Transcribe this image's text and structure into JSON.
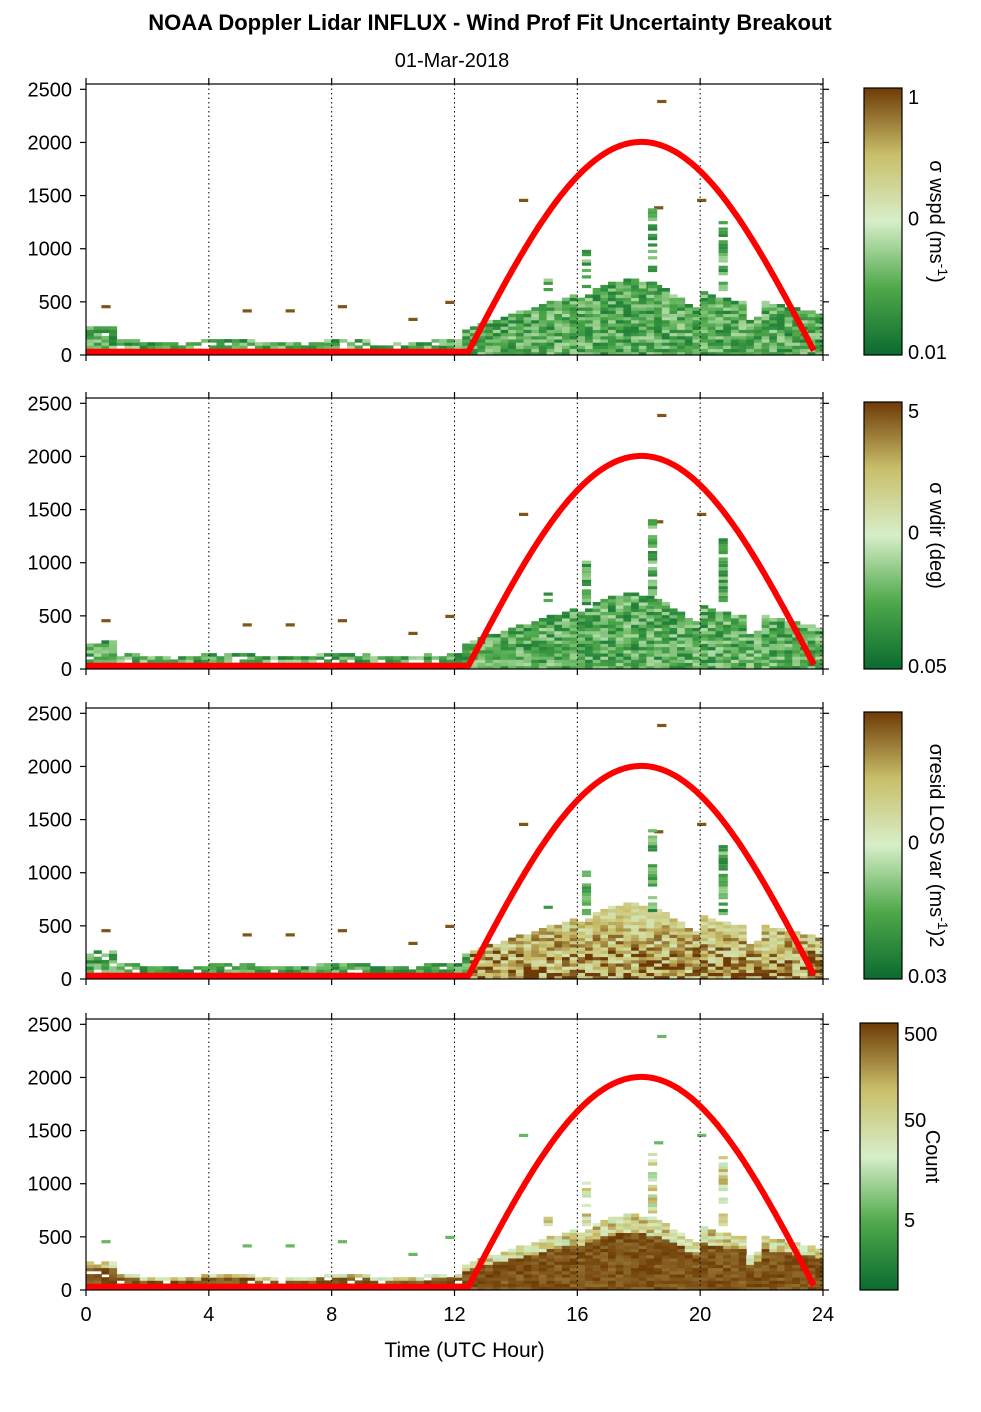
{
  "title": "NOAA Doppler Lidar INFLUX - Wind Prof Fit Uncertainty Breakout",
  "subtitle": "01-Mar-2018",
  "chart_data": [
    {
      "type": "heatmap",
      "xlabel": "",
      "ylabel": "",
      "xlim": [
        0,
        24
      ],
      "ylim": [
        0,
        2550
      ],
      "xticks": [
        0,
        4,
        8,
        12,
        16,
        20,
        24
      ],
      "yticks": [
        0,
        500,
        1000,
        1500,
        2000,
        2500
      ],
      "colorbar": {
        "label": "σ wspd (ms-1)",
        "label_main": "σ wspd (ms",
        "label_sup": "-1",
        "label_end": ")",
        "scale": "log",
        "ticks": [
          "1",
          "0",
          "0.01"
        ],
        "colors": [
          "#0a6b30",
          "#4ea84a",
          "#d7eec9",
          "#c9bf6a",
          "#6e3b06"
        ]
      },
      "series": [
        {
          "name": "",
          "type": "line",
          "color": "#ff0000"
        }
      ]
    },
    {
      "type": "heatmap",
      "xlabel": "",
      "ylabel": "",
      "xlim": [
        0,
        24
      ],
      "ylim": [
        0,
        2550
      ],
      "xticks": [
        0,
        4,
        8,
        12,
        16,
        20,
        24
      ],
      "yticks": [
        0,
        500,
        1000,
        1500,
        2000,
        2500
      ],
      "colorbar": {
        "label": "σ wdir (deg)",
        "label_main": "σ wdir (deg)",
        "label_sup": "",
        "label_end": "",
        "scale": "log",
        "ticks": [
          "5",
          "0",
          "0.05"
        ],
        "colors": [
          "#0a6b30",
          "#4ea84a",
          "#d7eec9",
          "#c9bf6a",
          "#6e3b06"
        ]
      },
      "series": [
        {
          "name": "",
          "type": "line",
          "color": "#ff0000"
        }
      ]
    },
    {
      "type": "heatmap",
      "xlabel": "",
      "ylabel": "",
      "xlim": [
        0,
        24
      ],
      "ylim": [
        0,
        2550
      ],
      "xticks": [
        0,
        4,
        8,
        12,
        16,
        20,
        24
      ],
      "yticks": [
        0,
        500,
        1000,
        1500,
        2000,
        2500
      ],
      "colorbar": {
        "label": "σresid LOS var (ms-1)2",
        "label_main": "σresid LOS var (ms",
        "label_sup": "-1",
        "label_end": ")2",
        "scale": "log",
        "ticks": [
          "",
          "0",
          "0.03"
        ],
        "colors": [
          "#0a6b30",
          "#4ea84a",
          "#d7eec9",
          "#c9bf6a",
          "#6e3b06"
        ]
      },
      "series": [
        {
          "name": "",
          "type": "line",
          "color": "#ff0000"
        }
      ]
    },
    {
      "type": "heatmap",
      "xlabel": "Time (UTC Hour)",
      "ylabel": "",
      "xlim": [
        0,
        24
      ],
      "ylim": [
        0,
        2550
      ],
      "xticks": [
        0,
        4,
        8,
        12,
        16,
        20,
        24
      ],
      "yticks": [
        0,
        500,
        1000,
        1500,
        2000,
        2500
      ],
      "colorbar": {
        "label": "Count",
        "label_main": "Count",
        "label_sup": "",
        "label_end": "",
        "scale": "log",
        "ticks": [
          "500",
          "50",
          "5"
        ],
        "colors": [
          "#0a6b30",
          "#4ea84a",
          "#d7eec9",
          "#c9bf6a",
          "#6e3b06"
        ]
      },
      "series": [
        {
          "name": "",
          "type": "line",
          "color": "#ff0000"
        }
      ]
    }
  ]
}
